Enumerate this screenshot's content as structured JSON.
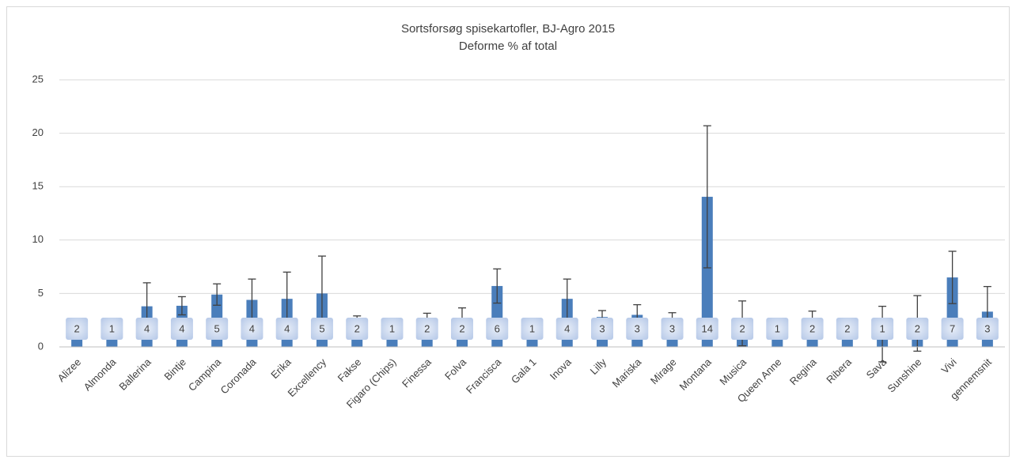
{
  "chart_data": {
    "type": "bar",
    "title": "Sortsforsøg spisekartofler, BJ-Agro 2015",
    "subtitle": "Deforme % af total",
    "categories": [
      "Alizee",
      "Almonda",
      "Ballerina",
      "Bintje",
      "Campina",
      "Coronada",
      "Erika",
      "Excellency",
      "Fakse",
      "Figaro (Chips)",
      "Finessa",
      "Folva",
      "Francisca",
      "Gala 1",
      "Inova",
      "Lilly",
      "Mariska",
      "Mirage",
      "Montana",
      "Musica",
      "Queen Anne",
      "Regina",
      "Ribera",
      "Sava",
      "Sunshine",
      "Vivi",
      "gennemsnit"
    ],
    "values": [
      2.0,
      0.9,
      3.8,
      3.85,
      4.9,
      4.4,
      4.5,
      5.0,
      2.3,
      1.0,
      2.2,
      2.3,
      5.7,
      1.0,
      4.5,
      2.8,
      3.0,
      2.7,
      14.05,
      2.2,
      1.0,
      2.2,
      2.0,
      1.2,
      2.2,
      6.5,
      3.3
    ],
    "errors": [
      null,
      null,
      2.2,
      0.85,
      1.0,
      1.95,
      2.5,
      3.5,
      0.6,
      null,
      0.95,
      1.35,
      1.6,
      null,
      1.85,
      0.6,
      0.95,
      0.5,
      6.65,
      2.1,
      null,
      1.15,
      null,
      2.6,
      2.6,
      2.45,
      2.35
    ],
    "value_labels": [
      "2",
      "1",
      "4",
      "4",
      "5",
      "4",
      "4",
      "5",
      "2",
      "1",
      "2",
      "2",
      "6",
      "1",
      "4",
      "3",
      "3",
      "3",
      "14",
      "2",
      "1",
      "2",
      "2",
      "1",
      "2",
      "7",
      "3"
    ],
    "color": "#4a7ebb",
    "ylim": [
      0,
      25
    ],
    "yticks": [
      0,
      5,
      10,
      15,
      20,
      25
    ],
    "grid": true
  }
}
